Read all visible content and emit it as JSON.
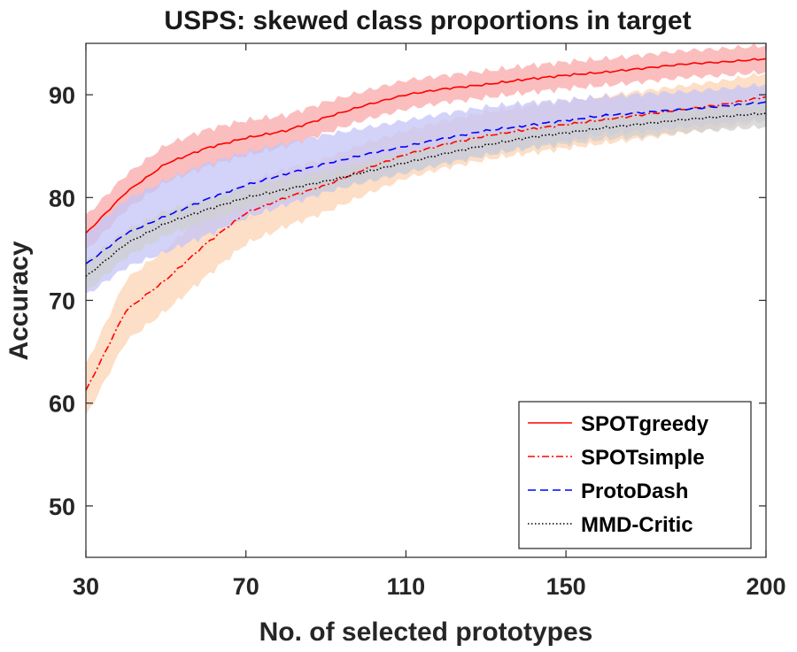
{
  "chart_data": {
    "type": "line",
    "title": "USPS: skewed class proportions in target",
    "xlabel": "No. of selected prototypes",
    "ylabel": "Accuracy",
    "xlim": [
      30,
      200
    ],
    "ylim": [
      45,
      95
    ],
    "xticks": [
      30,
      70,
      110,
      150,
      200
    ],
    "yticks": [
      50,
      60,
      70,
      80,
      90
    ],
    "legend_position": "bottom-right",
    "series": [
      {
        "name": "SPOTgreedy",
        "color": "#ff0000",
        "band_color": "#f9a8a8",
        "style": "solid",
        "x": [
          30,
          40,
          50,
          60,
          70,
          80,
          90,
          100,
          110,
          120,
          130,
          140,
          150,
          160,
          170,
          180,
          190,
          200
        ],
        "values": [
          76.5,
          80.5,
          83.3,
          84.8,
          85.8,
          86.5,
          87.8,
          89.0,
          90.0,
          90.6,
          91.0,
          91.5,
          91.9,
          92.2,
          92.6,
          93.0,
          93.2,
          93.5
        ],
        "band": [
          1.7,
          1.7,
          1.8,
          1.8,
          1.7,
          1.5,
          1.5,
          1.4,
          1.4,
          1.3,
          1.3,
          1.3,
          1.3,
          1.3,
          1.3,
          1.3,
          1.3,
          1.3
        ]
      },
      {
        "name": "SPOTsimple",
        "color": "#ff0000",
        "band_color": "#fcd3b3",
        "style": "dashdot",
        "x": [
          30,
          40,
          50,
          60,
          70,
          80,
          90,
          100,
          110,
          120,
          130,
          140,
          150,
          160,
          170,
          180,
          190,
          200
        ],
        "values": [
          61.2,
          69.0,
          72.0,
          75.5,
          78.5,
          80.0,
          81.2,
          82.8,
          84.2,
          85.2,
          86.0,
          86.6,
          87.1,
          87.6,
          88.1,
          88.6,
          89.1,
          89.8
        ],
        "band": [
          2.5,
          3.0,
          3.0,
          3.2,
          3.0,
          2.8,
          2.6,
          2.5,
          2.3,
          2.3,
          2.3,
          2.3,
          2.3,
          2.3,
          2.3,
          2.3,
          2.3,
          2.3
        ]
      },
      {
        "name": "ProtoDash",
        "color": "#0000ff",
        "band_color": "#c4c4f7",
        "style": "dashed",
        "x": [
          30,
          40,
          50,
          60,
          70,
          80,
          90,
          100,
          110,
          120,
          130,
          140,
          150,
          160,
          170,
          180,
          190,
          200
        ],
        "values": [
          73.5,
          76.5,
          78.2,
          79.8,
          81.2,
          82.3,
          83.3,
          84.2,
          85.0,
          85.8,
          86.5,
          87.0,
          87.5,
          88.0,
          88.3,
          88.6,
          88.9,
          89.3
        ],
        "band": [
          3.0,
          3.3,
          3.5,
          3.5,
          3.2,
          3.0,
          2.8,
          2.6,
          2.5,
          2.4,
          2.3,
          2.2,
          2.0,
          1.8,
          1.8,
          1.7,
          1.7,
          1.7
        ]
      },
      {
        "name": "MMD-Critic",
        "color": "#000000",
        "band_color": "#cfcfcf",
        "style": "dotted",
        "x": [
          30,
          40,
          50,
          60,
          70,
          80,
          90,
          100,
          110,
          120,
          130,
          140,
          150,
          160,
          170,
          180,
          190,
          200
        ],
        "values": [
          72.3,
          75.5,
          77.5,
          78.8,
          80.0,
          80.8,
          81.6,
          82.5,
          83.4,
          84.3,
          85.1,
          85.8,
          86.3,
          86.8,
          87.2,
          87.6,
          87.9,
          88.2
        ],
        "band": [
          1.5,
          1.3,
          1.2,
          1.1,
          1.0,
          1.0,
          1.0,
          1.0,
          1.0,
          1.0,
          1.0,
          1.0,
          1.1,
          1.1,
          1.2,
          1.2,
          1.3,
          1.3
        ]
      }
    ]
  }
}
